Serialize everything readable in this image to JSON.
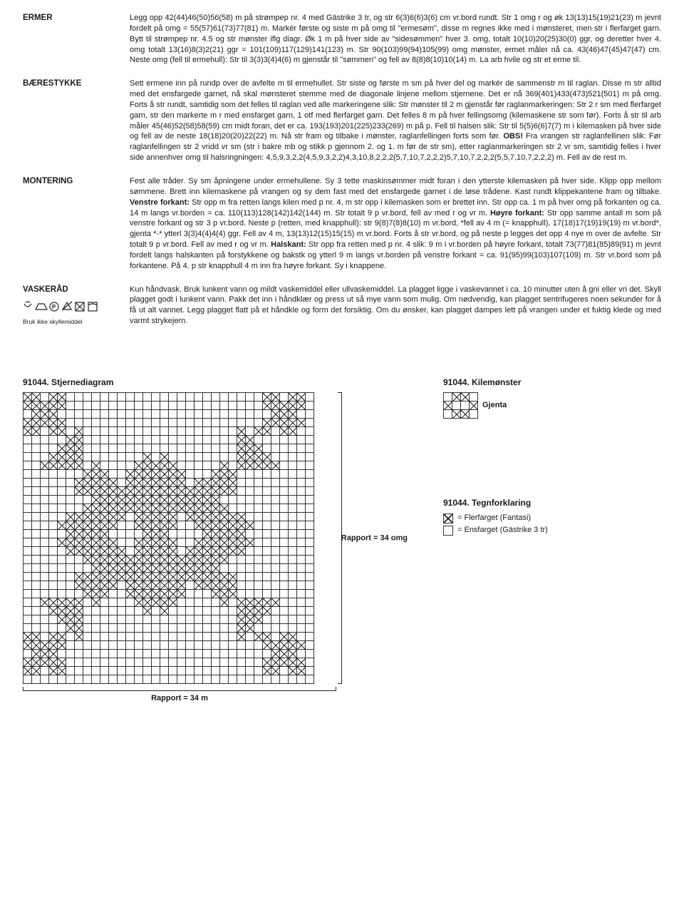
{
  "sections": {
    "ermer": {
      "label": "ERMER",
      "text": "Legg opp 42(44)46(50)56(58) m på strømpep nr. 4 med Gästrike 3 tr, og str 6(3)6(6)3(6) cm vr.bord rundt. Str 1 omg r og øk 13(13)15(19)21(23) m jevnt fordelt på omg = 55(57)61(73)77(81) m. Markér første og siste m på omg til \"ermesøm\", disse m regnes ikke med i mønsteret, men str i flerfarget garn. Bytt til strømpep nr. 4.5 og str mønster iflg diagr. Øk 1 m på hver side av \"sidesømmen\" hver 3. omg, totalt 10(10)20(25)30(0) ggr, og deretter hver 4. omg totalt 13(16)8(3)2(21) ggr = 101(109)117(129)141(123) m. Str 90(103)99(94)105(99) omg mønster, ermet måler nå ca. 43(46)47(45)47(47) cm.  Neste omg (fell til ermehull): Str til 3(3)3(4)4(6) m gjenstår til \"sømmen\" og fell av 8(8)8(10)10(14) m. La arb hvile og str et erme til."
    },
    "baerestykke": {
      "label": "BÆRESTYKKE",
      "text": "Sett ermene inn på rundp over de avfelte m til ermehullet. Str siste og første m sm på hver del og markér de sammenstr m til raglan. Disse m str alltid med det ensfargede garnet, nå skal mønsteret stemme med de diagonale linjene mellom stjernene. Det er nå 369(401)433(473)521(501) m på omg. Forts å str rundt, samtidig som det felles til raglan ved alle markeringene slik: Str mønster til 2 m gjenstår før raglanmarkeringen: Str 2 r sm med flerfarget garn, str den markerte m r med ensfarget garn, 1 otf med flerfarget garn. Det felles 8 m på hver fellingsomg (kilemaskene str som før). Forts å str til arb måler 45(46)52(58)58(59) cm midt foran, det er ca. 193(193)201(225)233(269) m på p. Fell til halsen slik: Str til 5(5)6(6)7(7) m i kilemasken på hver side og fell av de neste 18(18)20(20)22(22) m. Nå str fram og tilbake i mønster, raglanfellingen forts som før. <b>OBS!</b> Fra vrangen str raglanfellinen slik: Før raglanfellingen str 2 vridd vr sm (str i bakre mb og stikk p gjennom 2. og 1. m før de str sm), etter raglanmarkeringen str 2 vr sm, samtidig felles i hver side annenhver omg til halsringningen: 4,5,9,3,2,2(4,5,9,3,2,2)4,3,10,8,2,2,2(5,7,10,7,2,2,2)5,7,10,7,2,2,2(5,5,7,10,7,2,2,2) m. Fell av de rest m."
    },
    "montering": {
      "label": "MONTERING",
      "text": "Fest alle tråder. Sy sm åpningene under ermehullene. Sy 3 tette maskinsømmer midt foran i den ytterste kilemasken på hver side. Klipp opp mellom sømmene. Brett inn kilemaskene på vrangen og sy dem fast med det ensfargede garnet i de løse trådene. Kast rundt klippekantene fram og tilbake. <b>Venstre forkant:</b> Str opp m fra retten langs kilen med p nr. 4, m str opp i kilemasken som er brettet inn. Str opp ca. 1 m på hver omg på forkanten og ca. 14 m langs vr.borden = ca. 110(113)128(142)142(144) m. Str totalt 9 p vr.bord, fell av med r og vr m. <b>Høyre forkant:</b> Str opp samme antall m som på venstre forkant og str 3 p vr.bord. Neste p (retten, med knapphull): str 9(8)7(8)8(10) m vr.bord, *fell av 4 m (= knapphull), 17(18)17(19)19(19) m vr.bord*, gjenta *-* ytterl 3(3)4(4)4(4) ggr. Fell av 4 m, 13(13)12(15)15(15) m vr.bord. Forts å str vr.bord, og på neste p legges det opp 4 nye m over de avfelte. Str totalt 9 p vr.bord. Fell av med r og vr m. <b>Halskant:</b> Str opp fra retten med p nr. 4 slik: 9 m i vr.borden på høyre forkant, totalt 73(77)81(85)89(91) m jevnt fordelt langs halskanten på forstykkene og bakstk og ytterl 9 m langs vr.borden på venstre forkant = ca. 91(95)99(103)107(109) m. Str vr.bord som på forkantene. På 4. p str knapphull 4 m inn fra høyre forkant. Sy i knappene."
    },
    "vaskeraad": {
      "label": "VASKERÅD",
      "care_note": "Bruk ikke skyllemiddel",
      "text": "Kun håndvask. Bruk lunkent vann og mildt vaskemiddel eller ullvaskemiddel. La plagget ligge i vaskevannet i ca. 10 minutter uten å gni eller vri det. Skyll plagget godt i lunkent vann. Pakk det inn i håndklær og press ut så mye vann som mulig. Om nødvendig, kan plagget sentrifugeres noen sekunder for å få ut alt vannet. Legg plagget flatt på et håndkle og form det forsiktig. Om du ønsker, kan plagget dampes lett på vrangen under et fuktig klede og med varmt strykejern."
    }
  },
  "diagrams": {
    "stjerne": {
      "title": "91044. Stjernediagram",
      "rapport_v": "Rapport = 34 omg",
      "rapport_h": "Rapport = 34 m",
      "rows": [
        "1101100000000000000000000000110110",
        "1111100000000000000000000000111110",
        "0111000000000000000000000000011100",
        "1111100000000000000000000000111110",
        "1101101000000000000000000101101100",
        "0000011000000000000000000110000000",
        "0000111000000000000000000111000000",
        "0001111000000010100000000111100000",
        "0011111010000111110000010111110000",
        "0000000111001111111000111000000000",
        "0000001111101111111011111000000000",
        "0000001111111111111111111000000000",
        "0000000011111111111111100000000000",
        "0000000111111111111111110000000000",
        "0000011111110111110111111100000000",
        "0000111111100111110011111110000000",
        "0000011111000011100001111100000000",
        "0000111111100111110011111110000000",
        "0000011111110111110111111100000000",
        "0000000111111111111111110000000000",
        "0000000011111111111111100000000000",
        "0000001111111111111111111000000000",
        "0000001111101111111011111000000000",
        "0000000111001111111000111000000000",
        "0011111010000111110000010111110000",
        "0001111000000010100000000111100000",
        "0000111000000000000000000111000000",
        "0000011000000000000000000110000000",
        "1101101000000000000000000101101100",
        "1111100000000000000000000000111110",
        "0111000000000000000000000000011100",
        "1111100000000000000000000000111110",
        "1101100000000000000000000000110110",
        "0000000000000000000000000000000000"
      ]
    },
    "kile": {
      "title": "91044. Kilemønster",
      "label": "Gjenta",
      "rows": [
        "0110",
        "1001",
        "0110"
      ]
    },
    "legend": {
      "title": "91044. Tegnforklaring",
      "items": [
        {
          "filled": true,
          "text": "= Flerfarget (Fantasi)"
        },
        {
          "filled": false,
          "text": "= Ensfarget (Gästrike 3 tr)"
        }
      ]
    }
  }
}
